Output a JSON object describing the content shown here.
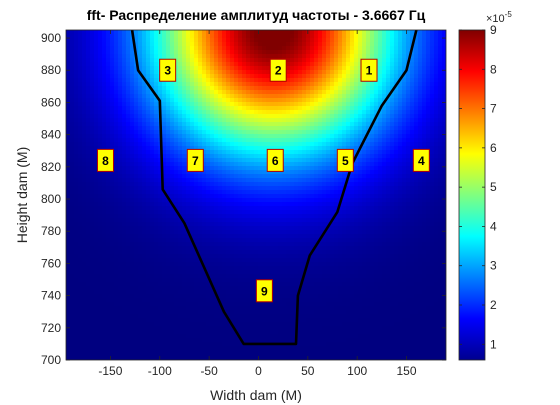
{
  "chart_data": {
    "type": "heatmap",
    "title": "fft- Распределение амплитуд частоты - 3.6667 Гц",
    "xlabel": "Width dam (M)",
    "ylabel": "Height dam (M)",
    "xlim": [
      -195,
      190
    ],
    "ylim": [
      700,
      905
    ],
    "x_ticks": [
      "-150",
      "-100",
      "-50",
      "0",
      "50",
      "100",
      "150"
    ],
    "x_tick_values": [
      -150,
      -100,
      -50,
      0,
      50,
      100,
      150
    ],
    "y_ticks": [
      "700",
      "720",
      "740",
      "760",
      "780",
      "800",
      "820",
      "840",
      "860",
      "880",
      "900"
    ],
    "y_tick_values": [
      700,
      720,
      740,
      760,
      780,
      800,
      820,
      840,
      860,
      880,
      900
    ],
    "colorbar": {
      "min": 0.6,
      "max": 9,
      "ticks": [
        "1",
        "2",
        "3",
        "4",
        "5",
        "6",
        "7",
        "8",
        "9"
      ],
      "tick_values": [
        1,
        2,
        3,
        4,
        5,
        6,
        7,
        8,
        9
      ],
      "exponent_label": "×10",
      "exponent": "-5",
      "colormap": "jet"
    },
    "field": {
      "peak_x": 15,
      "peak_y": 905,
      "peak_value": 9.2
    },
    "dam_outline": {
      "x": [
        -128,
        -122,
        -100,
        -97,
        -75,
        -35,
        -15,
        38,
        40,
        52,
        80,
        95,
        125,
        150,
        160
      ],
      "y": [
        905,
        880,
        861,
        806,
        785,
        730,
        710,
        710,
        740,
        765,
        792,
        822,
        858,
        880,
        905
      ]
    },
    "markers": [
      {
        "label": "1",
        "x": 112,
        "y": 880
      },
      {
        "label": "2",
        "x": 20,
        "y": 880
      },
      {
        "label": "3",
        "x": -92,
        "y": 880
      },
      {
        "label": "4",
        "x": 165,
        "y": 824
      },
      {
        "label": "5",
        "x": 88,
        "y": 824
      },
      {
        "label": "6",
        "x": 17,
        "y": 824
      },
      {
        "label": "7",
        "x": -64,
        "y": 824
      },
      {
        "label": "8",
        "x": -155,
        "y": 824
      },
      {
        "label": "9",
        "x": 6,
        "y": 743
      }
    ]
  }
}
